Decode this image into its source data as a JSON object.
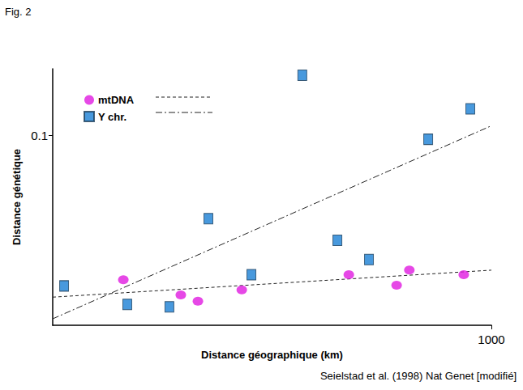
{
  "chart_data": {
    "type": "scatter",
    "figure_label": "Fig. 2",
    "source": "Seielstad et al. (1998) Nat Genet [modifié]",
    "x_label": "Distance géographique (km)",
    "y_label": "Distance génétique",
    "xlim": [
      0,
      1000
    ],
    "xticks": [
      1000
    ],
    "ylim": [
      0,
      0.135
    ],
    "yticks": [
      0.1
    ],
    "grid": false,
    "legend": "upper left",
    "series": [
      {
        "name": "mtDNA",
        "color": "#e01ae0",
        "marker": "circle",
        "x": [
          161,
          292,
          331,
          431,
          675,
          784,
          813,
          937
        ],
        "values": [
          0.024,
          0.016,
          0.0127,
          0.0186,
          0.0266,
          0.0211,
          0.0291,
          0.0266
        ],
        "fit": {
          "type": "line",
          "line_style": "dashed",
          "x": [
            0,
            1000
          ],
          "values": [
            0.0148,
            0.029
          ]
        }
      },
      {
        "name": "Y chr.",
        "color": "#1a7fd4",
        "marker": "square",
        "x": [
          26,
          170,
          266,
          355,
          453,
          569,
          649,
          721,
          856,
          952
        ],
        "values": [
          0.0207,
          0.011,
          0.0097,
          0.0561,
          0.0266,
          0.1316,
          0.0447,
          0.0346,
          0.0979,
          0.1139
        ],
        "fit": {
          "type": "line",
          "line_style": "dashdot",
          "x": [
            0,
            1000
          ],
          "values": [
            0.0034,
            0.105
          ]
        }
      }
    ]
  }
}
